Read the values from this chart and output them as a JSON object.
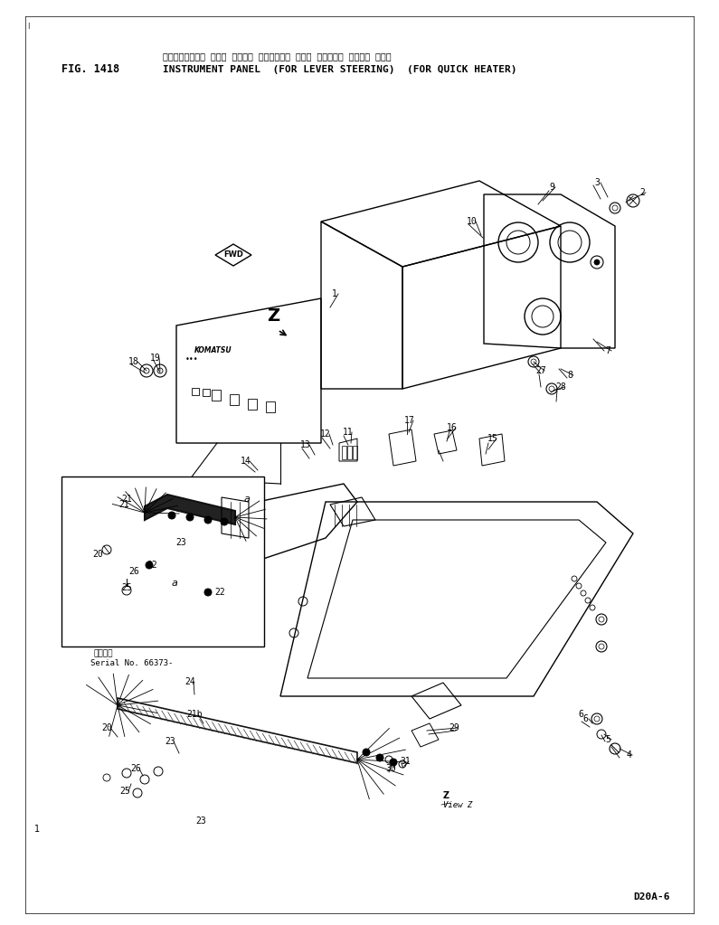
{
  "title_japanese": "インストルメント パネル （レバー ステアリング ヨウ） （クイック ヒーター ヨウ）",
  "fig_label": "FIG. 1418",
  "title_english": "INSTRUMENT PANEL  (FOR LEVER STEERING)  (FOR QUICK HEATER)",
  "model": "D20A-6",
  "bg": "#ffffff",
  "lc": "#000000",
  "serial_text_line1": "適用番号",
  "serial_text_line2": "Serial No. 66373-"
}
